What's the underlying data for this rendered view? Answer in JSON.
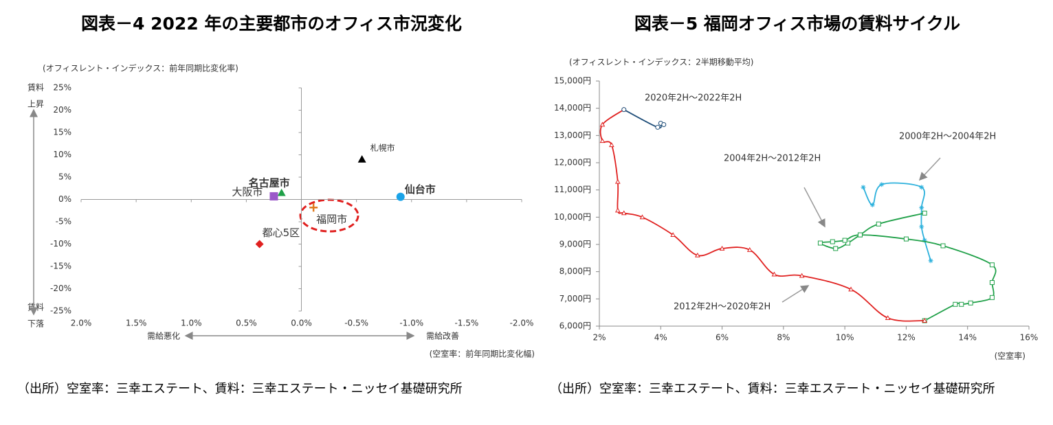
{
  "chart_data": [
    {
      "type": "scatter",
      "title": "図表－4  2022 年の主要都市のオフィス市況変化",
      "y_annotation": "(オフィスレント・インデックス：前年同期比変化率)",
      "x_annotation": "(空室率：前年同期比変化幅)",
      "y_high_label": [
        "賃料",
        "上昇"
      ],
      "y_low_label": [
        "賃料",
        "下落"
      ],
      "x_left_label": "需給悪化",
      "x_right_label": "需給改善",
      "note": "（出所）空室率：三幸エステート、賃料：三幸エステート・ニッセイ基礎研究所",
      "xlim": [
        2,
        -2
      ],
      "ylim": [
        -25,
        25
      ],
      "xticks": [
        {
          "value": 2,
          "label": "2.0%"
        },
        {
          "value": 1.5,
          "label": "1.5%"
        },
        {
          "value": 1,
          "label": "1.0%"
        },
        {
          "value": 0.5,
          "label": "0.5%"
        },
        {
          "value": 0,
          "label": "0.0%"
        },
        {
          "value": -0.5,
          "label": "-0.5%"
        },
        {
          "value": -1,
          "label": "-1.0%"
        },
        {
          "value": -1.5,
          "label": "-1.5%"
        },
        {
          "value": -2,
          "label": "-2.0%"
        }
      ],
      "yticks": [
        {
          "value": 25,
          "label": "25%"
        },
        {
          "value": 20,
          "label": "20%"
        },
        {
          "value": 15,
          "label": "15%"
        },
        {
          "value": 10,
          "label": "10%"
        },
        {
          "value": 5,
          "label": "5%"
        },
        {
          "value": 0,
          "label": "0%"
        },
        {
          "value": -5,
          "label": "-5%"
        },
        {
          "value": -10,
          "label": "-10%"
        },
        {
          "value": -15,
          "label": "-15%"
        },
        {
          "value": -20,
          "label": "-20%"
        },
        {
          "value": -25,
          "label": "-25%"
        }
      ],
      "series": [
        {
          "name": "札幌市",
          "color": "#000000",
          "marker": "triangle",
          "x": [
            -0.55
          ],
          "values": [
            9
          ]
        },
        {
          "name": "名古屋市",
          "color": "#1fa048",
          "marker": "triangle",
          "x": [
            0.18
          ],
          "values": [
            1.5
          ]
        },
        {
          "name": "大阪市",
          "color": "#9b59c9",
          "marker": "square",
          "x": [
            0.25
          ],
          "values": [
            0.7
          ]
        },
        {
          "name": "仙台市",
          "color": "#1aa3e8",
          "marker": "circle",
          "x": [
            -0.9
          ],
          "values": [
            0.6
          ]
        },
        {
          "name": "都心5区",
          "color": "#e0201f",
          "marker": "diamond",
          "x": [
            0.38
          ],
          "values": [
            -10
          ]
        },
        {
          "name": "福岡市",
          "color": "#e07a1f",
          "marker": "plus",
          "x": [
            -0.11
          ],
          "values": [
            -1.8
          ]
        }
      ]
    },
    {
      "type": "line",
      "title": "図表－5  福岡オフィス市場の賃料サイクル",
      "y_annotation": "(オフィスレント・インデックス：2半期移動平均)",
      "x_annotation": "(空室率)",
      "note": "（出所）空室率：三幸エステート、賃料：三幸エステート・ニッセイ基礎研究所",
      "xlim": [
        2,
        16
      ],
      "ylim": [
        6000,
        15000
      ],
      "xticks": [
        {
          "value": 2,
          "label": "2%"
        },
        {
          "value": 4,
          "label": "4%"
        },
        {
          "value": 6,
          "label": "6%"
        },
        {
          "value": 8,
          "label": "8%"
        },
        {
          "value": 10,
          "label": "10%"
        },
        {
          "value": 12,
          "label": "12%"
        },
        {
          "value": 14,
          "label": "14%"
        },
        {
          "value": 16,
          "label": "16%"
        }
      ],
      "yticks": [
        {
          "value": 6000,
          "label": "6,000円"
        },
        {
          "value": 7000,
          "label": "7,000円"
        },
        {
          "value": 8000,
          "label": "8,000円"
        },
        {
          "value": 9000,
          "label": "9,000円"
        },
        {
          "value": 10000,
          "label": "10,000円"
        },
        {
          "value": 11000,
          "label": "11,000円"
        },
        {
          "value": 12000,
          "label": "12,000円"
        },
        {
          "value": 13000,
          "label": "13,000円"
        },
        {
          "value": 14000,
          "label": "14,000円"
        },
        {
          "value": 15000,
          "label": "15,000円"
        }
      ],
      "series": [
        {
          "name": "2000年2H～2004年2H",
          "color": "#2ab0dc",
          "marker": "asterisk",
          "x": [
            10.6,
            10.9,
            11.2,
            12.5,
            12.5,
            12.5,
            12.6,
            12.8
          ],
          "values": [
            11100,
            10450,
            11200,
            11100,
            10350,
            9650,
            9150,
            8400
          ]
        },
        {
          "name": "2004年2H～2012年2H",
          "color": "#1fa048",
          "marker": "square",
          "x": [
            12.6,
            11.1,
            10.5,
            10.1,
            9.7,
            9.2,
            9.6,
            10.0,
            10.5,
            12.0,
            13.2,
            14.8,
            14.8,
            14.8,
            14.1,
            13.8,
            13.6,
            12.6
          ],
          "values": [
            10150,
            9750,
            9350,
            9050,
            8850,
            9050,
            9100,
            9150,
            9350,
            9200,
            8950,
            8250,
            7600,
            7050,
            6850,
            6800,
            6800,
            6200
          ]
        },
        {
          "name": "2012年2H～2020年2H",
          "color": "#e0201f",
          "marker": "triangle",
          "x": [
            12.6,
            11.4,
            10.2,
            8.6,
            7.7,
            6.9,
            6.0,
            5.2,
            4.4,
            3.4,
            2.8,
            2.6,
            2.6,
            2.4,
            2.1,
            2.1,
            2.8
          ],
          "values": [
            6200,
            6300,
            7350,
            7850,
            7900,
            8800,
            8850,
            8600,
            9350,
            10000,
            10150,
            10250,
            11300,
            12650,
            12800,
            13400,
            13950
          ]
        },
        {
          "name": "2020年2H～2022年2H",
          "color": "#1f4e79",
          "marker": "circle",
          "x": [
            2.8,
            3.9,
            4.0,
            4.1
          ],
          "values": [
            13950,
            13300,
            13450,
            13400
          ]
        }
      ]
    }
  ]
}
